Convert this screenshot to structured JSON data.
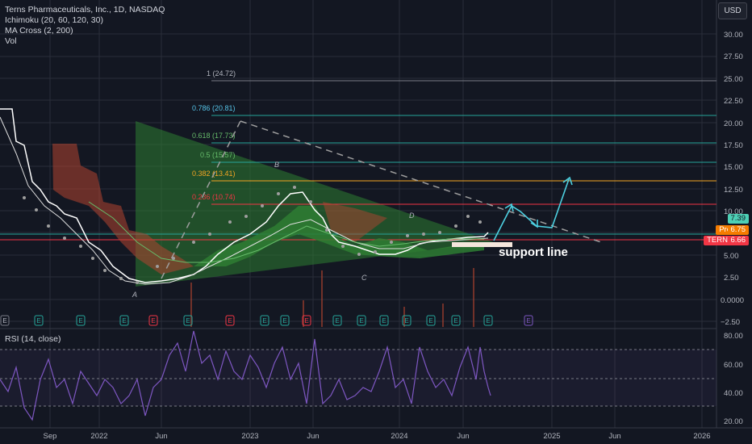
{
  "legend": {
    "title": "Terns Pharmaceuticals, Inc., 1D, NASDAQ",
    "ichimoku": "Ichimoku (20, 60, 120, 30)",
    "ma_cross": "MA Cross (2, 200)",
    "vol": "Vol"
  },
  "currency_button": "USD",
  "rsi_label": "RSI (14, close)",
  "price_axis": [
    "30.00",
    "27.50",
    "25.00",
    "22.50",
    "20.00",
    "17.50",
    "15.00",
    "12.50",
    "10.00",
    "7.50",
    "5.00",
    "2.50",
    "0.0000",
    "−2.50"
  ],
  "rsi_axis": [
    "80.00",
    "60.00",
    "40.00",
    "20.00"
  ],
  "time_axis": [
    "Sep",
    "2022",
    "Jun",
    "2023",
    "Jun",
    "2024",
    "Jun",
    "2025",
    "Jun",
    "2026"
  ],
  "price_badges": {
    "last": "7.39",
    "pre_label": "Pre",
    "pre_value": "6.75",
    "ticker_label": "TERN",
    "ticker_value": "6.66"
  },
  "fib_levels": [
    {
      "label": "1 (24.72)",
      "color": "#787b86"
    },
    {
      "label": "0.786 (20.81)",
      "color": "#56c4e8"
    },
    {
      "label": "0.618 (17.73)",
      "color": "#66bb6a"
    },
    {
      "label": "0.5 (15.57)",
      "color": "#66bb6a"
    },
    {
      "label": "0.382 (13.41)",
      "color": "#f5a623"
    },
    {
      "label": "0.236 (10.74)",
      "color": "#f23645"
    }
  ],
  "wave_labels": [
    "A",
    "B",
    "C",
    "D"
  ],
  "annotation": "support line",
  "event_markers": [
    "E",
    "E",
    "E",
    "E",
    "E",
    "E",
    "E",
    "E",
    "E",
    "E",
    "E",
    "E",
    "E",
    "E",
    "E",
    "E",
    "E",
    "E",
    "E",
    "E",
    "E",
    "E",
    "E"
  ],
  "colors": {
    "background": "#131722",
    "price_line": "#ffffff",
    "arrow": "#4dd0e1",
    "triangle": "#2e7d32",
    "rsi_line": "#7e57c2",
    "badge_last": "#4dd0b5",
    "badge_pre": "#f57c00",
    "badge_ticker": "#f23645"
  }
}
